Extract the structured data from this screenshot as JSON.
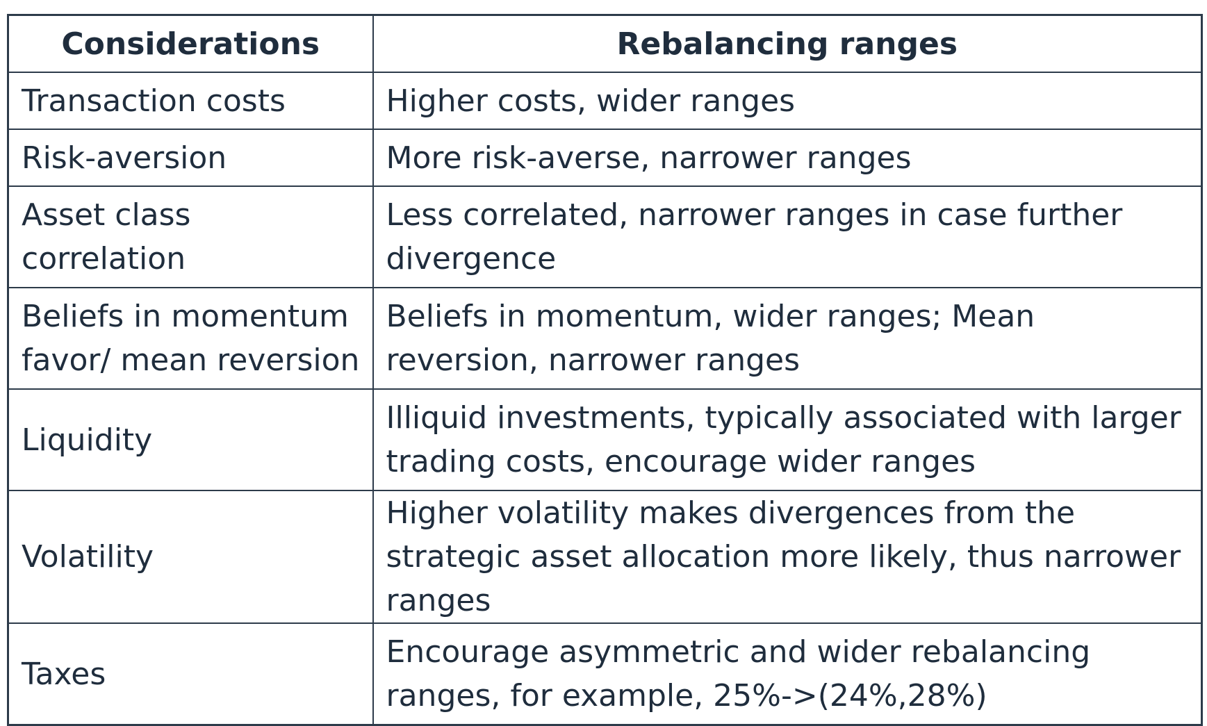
{
  "table": {
    "headers": [
      "Considerations",
      "Rebalancing ranges"
    ],
    "rows": [
      {
        "consideration": "Transaction costs",
        "range": "Higher costs, wider ranges"
      },
      {
        "consideration": "Risk-aversion",
        "range": "More risk-averse, narrower ranges"
      },
      {
        "consideration": "Asset class correlation",
        "range": "Less correlated, narrower ranges in case further divergence"
      },
      {
        "consideration": "Beliefs in momentum favor/ mean reversion",
        "range": "Beliefs in momentum, wider ranges; Mean reversion, narrower ranges"
      },
      {
        "consideration": "Liquidity",
        "range": "Illiquid investments, typically associated with larger trading costs, encourage wider ranges"
      },
      {
        "consideration": "Volatility",
        "range": "Higher volatility makes divergences from the strategic asset allocation more likely, thus narrower ranges"
      },
      {
        "consideration": "Taxes",
        "range": "Encourage asymmetric and wider rebalancing ranges, for example, 25%->(24%,28%)"
      }
    ]
  }
}
